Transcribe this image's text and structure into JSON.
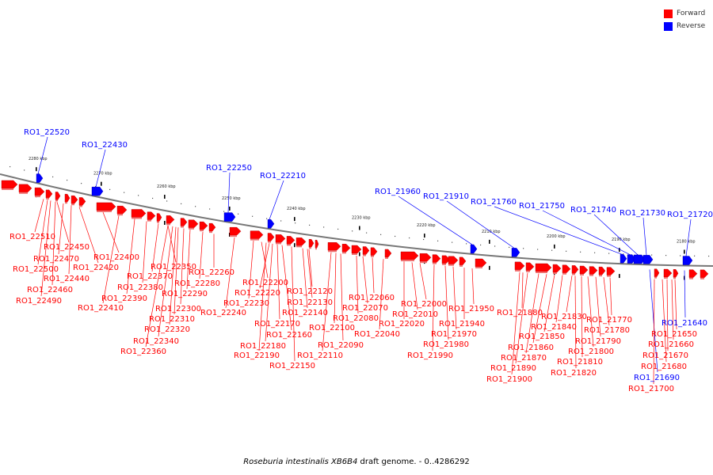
{
  "legend": [
    {
      "label": "Forward",
      "color": "#ff0000"
    },
    {
      "label": "Reverse",
      "color": "#0000ff"
    }
  ],
  "caption": {
    "organism": "Roseburia intestinalis XB6B4",
    "rest": " draft genome. - 0..4286292"
  },
  "colors": {
    "forward": "#ff0000",
    "reverse": "#0000ff",
    "backbone": "#777777"
  },
  "ticks": [
    "2280 kbp",
    "2270 kbp",
    "2260 kbp",
    "2250 kbp",
    "2240 kbp",
    "2230 kbp",
    "2220 kbp",
    "2210 kbp",
    "2200 kbp",
    "2190 kbp",
    "2180 kbp"
  ],
  "genes": {
    "forward_above": [
      "RO1_22510",
      "RO1_22450",
      "RO1_22470",
      "RO1_22500",
      "RO1_22420",
      "RO1_22400",
      "RO1_22440",
      "RO1_22460",
      "RO1_22490",
      "RO1_22390",
      "RO1_22410",
      "RO1_22370",
      "RO1_22350",
      "RO1_22380",
      "RO1_22290",
      "RO1_22280",
      "RO1_22260",
      "RO1_22300",
      "RO1_22310",
      "RO1_22320",
      "RO1_22340",
      "RO1_22360",
      "RO1_22240"
    ],
    "forward_middle": [
      "RO1_22200",
      "RO1_22220",
      "RO1_22230",
      "RO1_22120",
      "RO1_22130",
      "RO1_22140",
      "RO1_22170",
      "RO1_22160",
      "RO1_22180",
      "RO1_22190",
      "RO1_22150",
      "RO1_22060",
      "RO1_22070",
      "RO1_22080",
      "RO1_22100",
      "RO1_22090",
      "RO1_22110",
      "RO1_22040"
    ],
    "forward_right": [
      "RO1_22000",
      "RO1_22010",
      "RO1_22020",
      "RO1_21950",
      "RO1_21940",
      "RO1_21970",
      "RO1_21980",
      "RO1_21990",
      "RO1_21880",
      "RO1_21830",
      "RO1_21840",
      "RO1_21850",
      "RO1_21860",
      "RO1_21870",
      "RO1_21890",
      "RO1_21900",
      "RO1_21770",
      "RO1_21780",
      "RO1_21790",
      "RO1_21800",
      "RO1_21810",
      "RO1_21820",
      "RO1_21650",
      "RO1_21660",
      "RO1_21670",
      "RO1_21680",
      "RO1_21700"
    ],
    "reverse": [
      "RO1_22520",
      "RO1_22430",
      "RO1_22250",
      "RO1_22210",
      "RO1_21960",
      "RO1_21910",
      "RO1_21760",
      "RO1_21750",
      "RO1_21740",
      "RO1_21730",
      "RO1_21720",
      "RO1_21640",
      "RO1_21690"
    ]
  }
}
